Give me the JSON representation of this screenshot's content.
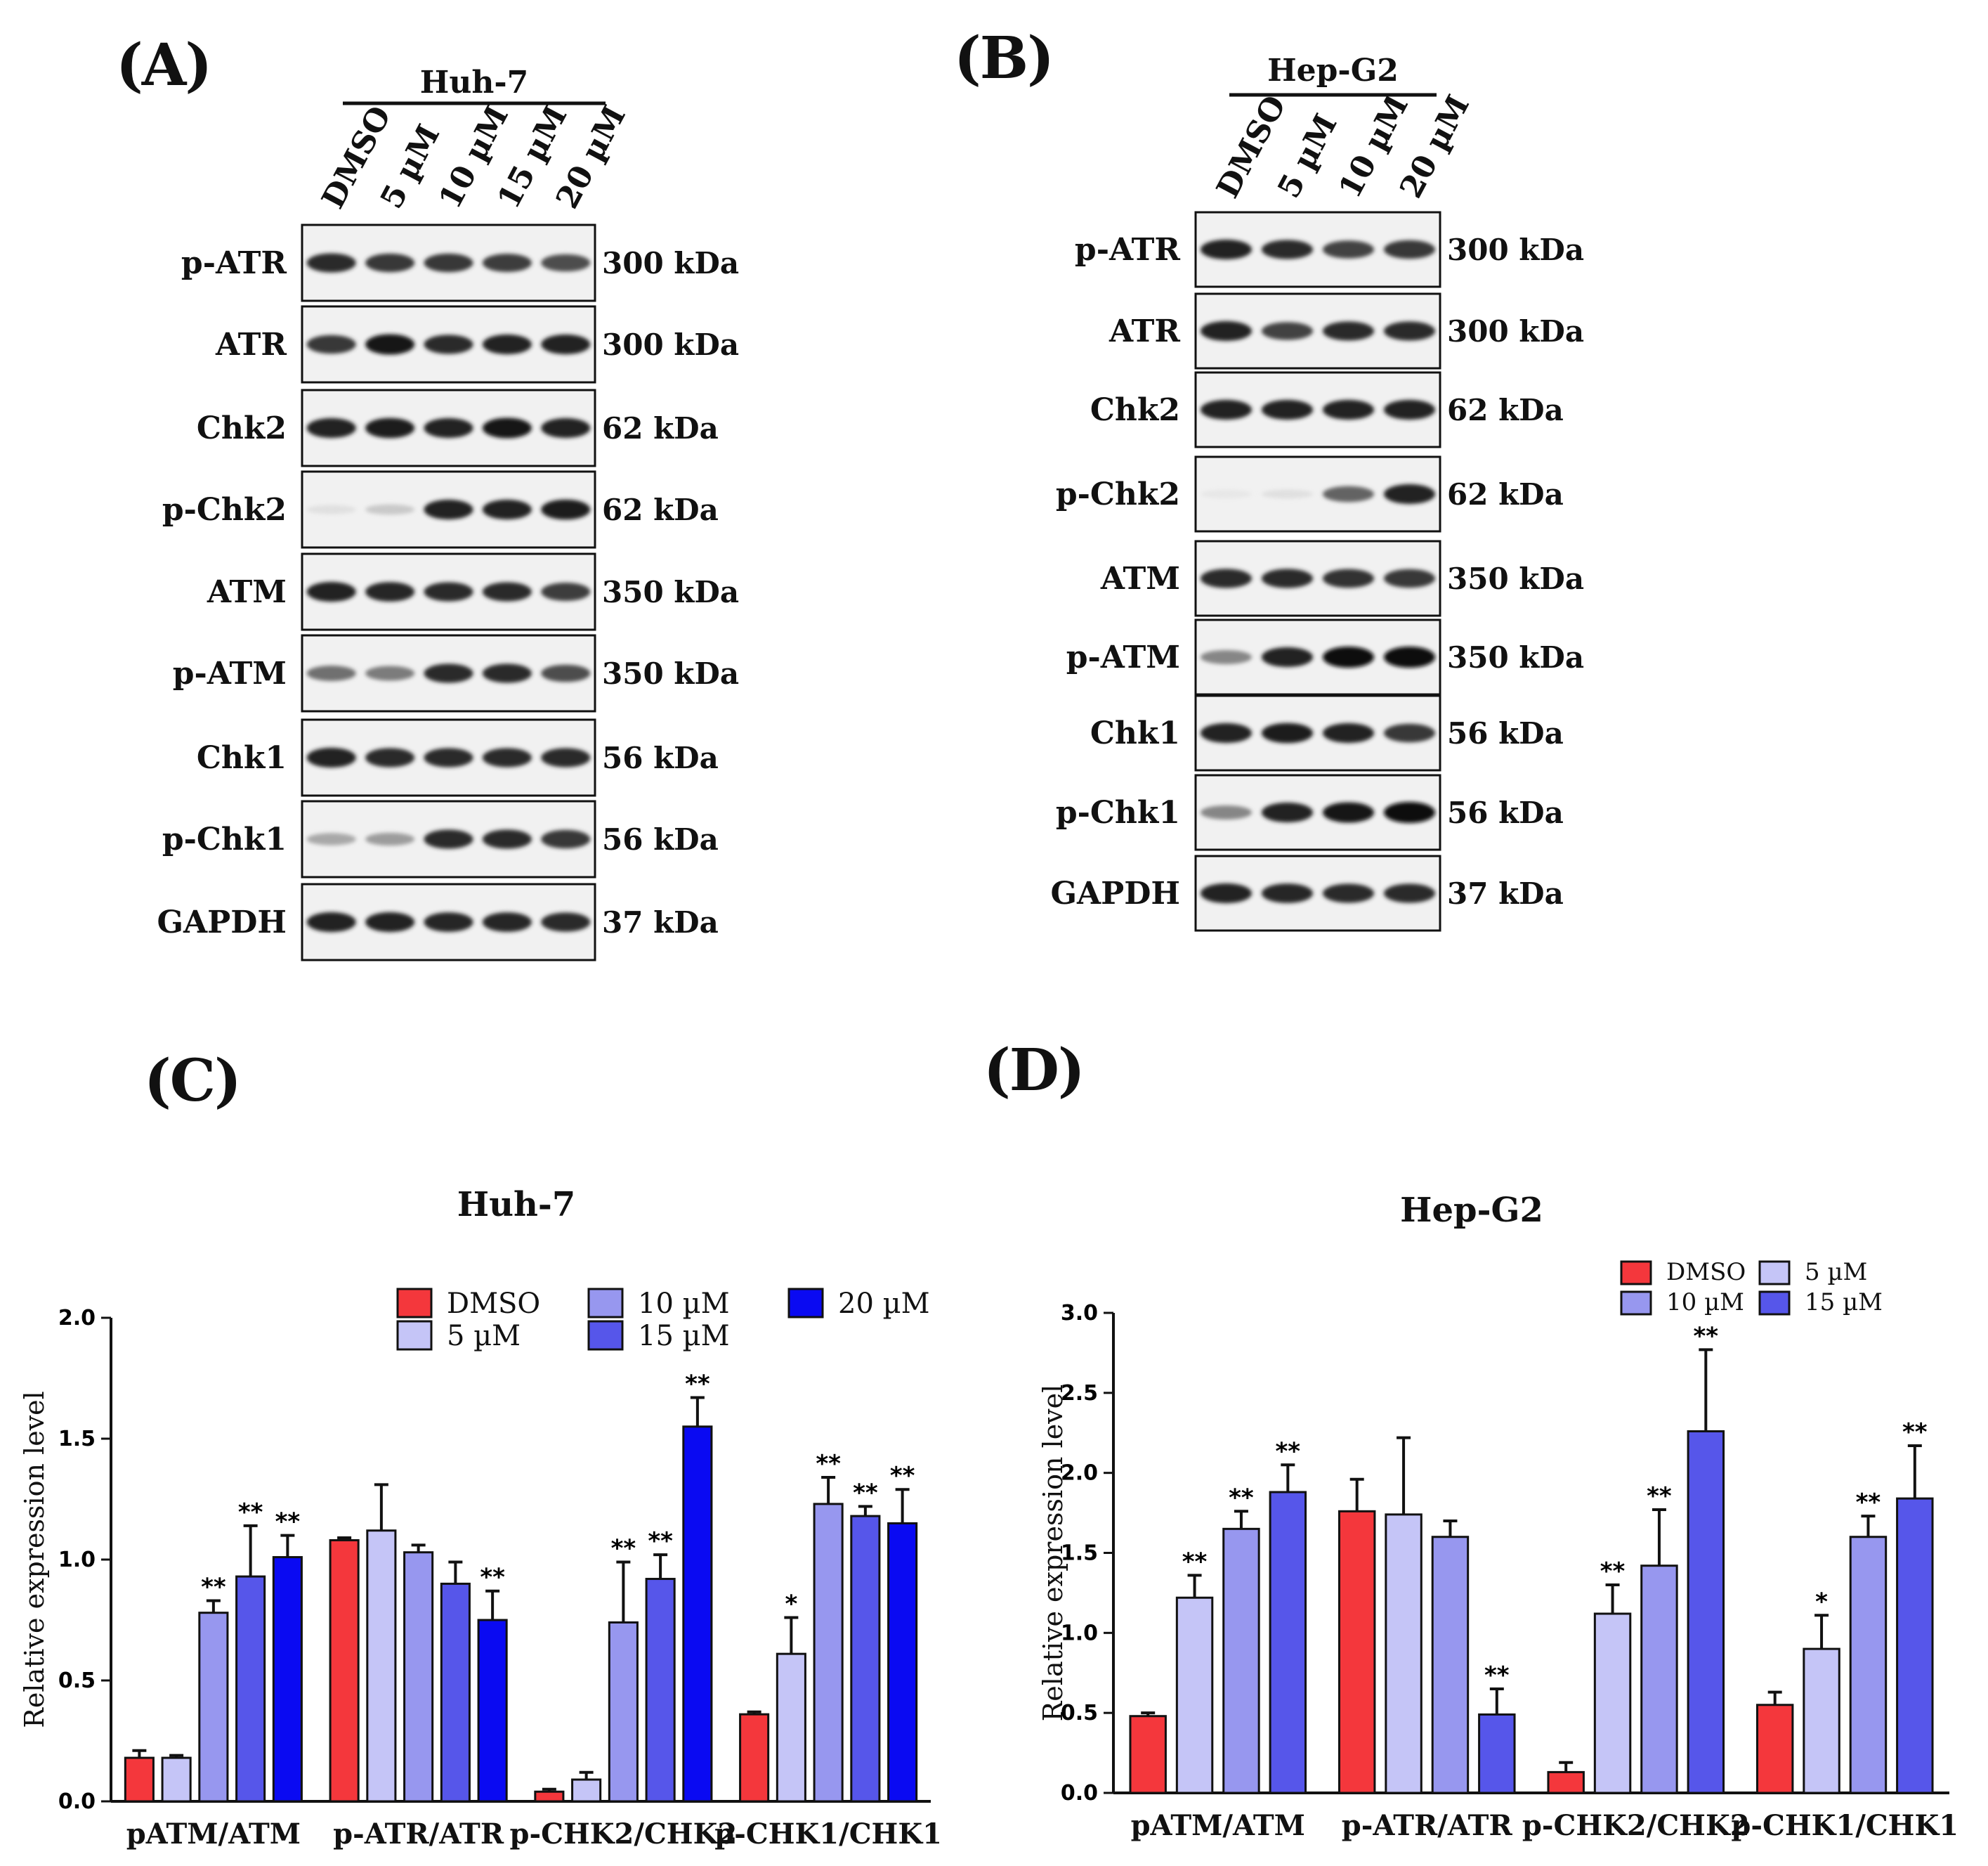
{
  "panels": {
    "a": {
      "letter": "(A)"
    },
    "b": {
      "letter": "(B)"
    },
    "c": {
      "letter": "(C)"
    },
    "d": {
      "letter": "(D)"
    }
  },
  "blot_a": {
    "cell_line": "Huh-7",
    "lanes": [
      "DMSO",
      "5 µM",
      "10 µM",
      "15 µM",
      "20 µM"
    ],
    "rows": [
      {
        "label": "p-ATR",
        "kda": "300 kDa",
        "intensity": [
          0.85,
          0.8,
          0.8,
          0.78,
          0.7
        ]
      },
      {
        "label": "ATR",
        "kda": "300 kDa",
        "intensity": [
          0.8,
          0.95,
          0.85,
          0.9,
          0.9
        ]
      },
      {
        "label": "Chk2",
        "kda": "62 kDa",
        "intensity": [
          0.9,
          0.92,
          0.9,
          0.95,
          0.9
        ]
      },
      {
        "label": "p-Chk2",
        "kda": "62 kDa",
        "intensity": [
          0.05,
          0.15,
          0.9,
          0.9,
          0.92
        ]
      },
      {
        "label": "ATM",
        "kda": "350 kDa",
        "intensity": [
          0.9,
          0.88,
          0.85,
          0.85,
          0.78
        ]
      },
      {
        "label": "p-ATM",
        "kda": "350 kDa",
        "intensity": [
          0.55,
          0.5,
          0.85,
          0.85,
          0.7
        ]
      },
      {
        "label": "Chk1",
        "kda": "56 kDa",
        "intensity": [
          0.9,
          0.85,
          0.85,
          0.85,
          0.85
        ]
      },
      {
        "label": "p-Chk1",
        "kda": "56 kDa",
        "intensity": [
          0.3,
          0.35,
          0.85,
          0.85,
          0.8
        ]
      },
      {
        "label": "GAPDH",
        "kda": "37 kDa",
        "intensity": [
          0.9,
          0.9,
          0.88,
          0.88,
          0.85
        ]
      }
    ]
  },
  "blot_b": {
    "cell_line": "Hep-G2",
    "lanes": [
      "DMSO",
      "5 µM",
      "10 µM",
      "20 µM"
    ],
    "rows": [
      {
        "label": "p-ATR",
        "kda": "300 kDa",
        "intensity": [
          0.9,
          0.85,
          0.75,
          0.8
        ]
      },
      {
        "label": "ATR",
        "kda": "300 kDa",
        "intensity": [
          0.9,
          0.75,
          0.85,
          0.85
        ]
      },
      {
        "label": "Chk2",
        "kda": "62 kDa",
        "intensity": [
          0.9,
          0.9,
          0.9,
          0.9
        ]
      },
      {
        "label": "p-Chk2",
        "kda": "62 kDa",
        "intensity": [
          0.02,
          0.05,
          0.6,
          0.9
        ]
      },
      {
        "label": "ATM",
        "kda": "350 kDa",
        "intensity": [
          0.85,
          0.85,
          0.82,
          0.8
        ]
      },
      {
        "label": "p-ATM",
        "kda": "350 kDa",
        "intensity": [
          0.45,
          0.9,
          1.0,
          1.0
        ]
      },
      {
        "label": "Chk1",
        "kda": "56 kDa",
        "intensity": [
          0.9,
          0.92,
          0.9,
          0.8
        ]
      },
      {
        "label": "p-Chk1",
        "kda": "56 kDa",
        "intensity": [
          0.45,
          0.9,
          0.95,
          1.0
        ]
      },
      {
        "label": "GAPDH",
        "kda": "37 kDa",
        "intensity": [
          0.9,
          0.88,
          0.85,
          0.85
        ]
      }
    ]
  },
  "chart_data": [
    {
      "type": "bar",
      "title": "Huh-7",
      "ylabel": "Relative expression level",
      "xlabel": "",
      "ylim": [
        0,
        2.0
      ],
      "yticks": [
        "0.0",
        "0.5",
        "1.0",
        "1.5",
        "2.0"
      ],
      "categories": [
        "pATM/ATM",
        "p-ATR/ATR",
        "p-CHK2/CHK2",
        "p-CHK1/CHK1"
      ],
      "legend_position": "top-right",
      "series": [
        {
          "name": "DMSO",
          "color": "#f4373c",
          "values": [
            0.18,
            1.08,
            0.04,
            0.36
          ],
          "errors": [
            0.03,
            0.01,
            0.01,
            0.01
          ],
          "sig": [
            "",
            "",
            "",
            ""
          ]
        },
        {
          "name": "5 µM",
          "color": "#c5c5f7",
          "values": [
            0.18,
            1.12,
            0.09,
            0.61
          ],
          "errors": [
            0.01,
            0.19,
            0.03,
            0.15
          ],
          "sig": [
            "",
            "",
            "",
            "*"
          ]
        },
        {
          "name": "10 µM",
          "color": "#9797ef",
          "values": [
            0.78,
            1.03,
            0.74,
            1.23
          ],
          "errors": [
            0.05,
            0.03,
            0.25,
            0.11
          ],
          "sig": [
            "**",
            "",
            "**",
            "**"
          ]
        },
        {
          "name": "15 µM",
          "color": "#5656ea",
          "values": [
            0.93,
            0.9,
            0.92,
            1.18
          ],
          "errors": [
            0.21,
            0.09,
            0.1,
            0.04
          ],
          "sig": [
            "**",
            "",
            "**",
            "**"
          ]
        },
        {
          "name": "20 µM",
          "color": "#0a0af2",
          "values": [
            1.01,
            0.75,
            1.55,
            1.15
          ],
          "errors": [
            0.09,
            0.12,
            0.12,
            0.14
          ],
          "sig": [
            "**",
            "**",
            "**",
            "**"
          ]
        }
      ]
    },
    {
      "type": "bar",
      "title": "Hep-G2",
      "ylabel": "Relative expression level",
      "xlabel": "",
      "ylim": [
        0,
        3.0
      ],
      "yticks": [
        "0.0",
        "0.5",
        "1.0",
        "1.5",
        "2.0",
        "2.5",
        "3.0"
      ],
      "categories": [
        "pATM/ATM",
        "p-ATR/ATR",
        "p-CHK2/CHK2",
        "p-CHK1/CHK1"
      ],
      "legend_position": "top-right",
      "series": [
        {
          "name": "DMSO",
          "color": "#f4373c",
          "values": [
            0.48,
            1.76,
            0.13,
            0.55
          ],
          "errors": [
            0.02,
            0.2,
            0.06,
            0.08
          ],
          "sig": [
            "",
            "",
            "",
            ""
          ]
        },
        {
          "name": "5 µM",
          "color": "#c5c5f7",
          "values": [
            1.22,
            1.74,
            1.12,
            0.9
          ],
          "errors": [
            0.14,
            0.48,
            0.18,
            0.21
          ],
          "sig": [
            "**",
            "",
            "**",
            "*"
          ]
        },
        {
          "name": "10 µM",
          "color": "#9797ef",
          "values": [
            1.65,
            1.6,
            1.42,
            1.6
          ],
          "errors": [
            0.11,
            0.1,
            0.35,
            0.13
          ],
          "sig": [
            "**",
            "",
            "**",
            "**"
          ]
        },
        {
          "name": "15 µM",
          "color": "#5656ea",
          "values": [
            1.88,
            0.49,
            2.26,
            1.84
          ],
          "errors": [
            0.17,
            0.16,
            0.51,
            0.33
          ],
          "sig": [
            "**",
            "**",
            "**",
            "**"
          ]
        }
      ]
    }
  ]
}
